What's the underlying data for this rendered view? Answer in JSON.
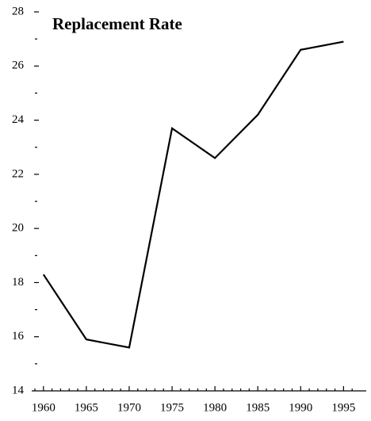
{
  "chart_data": {
    "type": "line",
    "title": "Replacement Rate",
    "x": [
      1960,
      1965,
      1970,
      1975,
      1980,
      1985,
      1990,
      1995
    ],
    "values": [
      18.3,
      15.9,
      15.6,
      23.7,
      22.6,
      24.2,
      26.6,
      26.9
    ],
    "color": "#000000",
    "xlim": [
      1959,
      1997
    ],
    "xticks": [
      1960,
      1965,
      1970,
      1975,
      1980,
      1985,
      1990,
      1995
    ],
    "xminorticks": [
      1959,
      1961,
      1962,
      1963,
      1964,
      1966,
      1967,
      1968,
      1969,
      1971,
      1972,
      1973,
      1974,
      1976,
      1977,
      1978,
      1979,
      1981,
      1982,
      1983,
      1984,
      1986,
      1987,
      1988,
      1989,
      1991,
      1992,
      1993,
      1994,
      1996
    ],
    "ylim": [
      14,
      28
    ],
    "yticks": [
      14,
      16,
      18,
      20,
      22,
      24,
      26,
      28
    ],
    "yminorticks": [
      15,
      17,
      19,
      21,
      23,
      25,
      27
    ],
    "grid": false
  }
}
